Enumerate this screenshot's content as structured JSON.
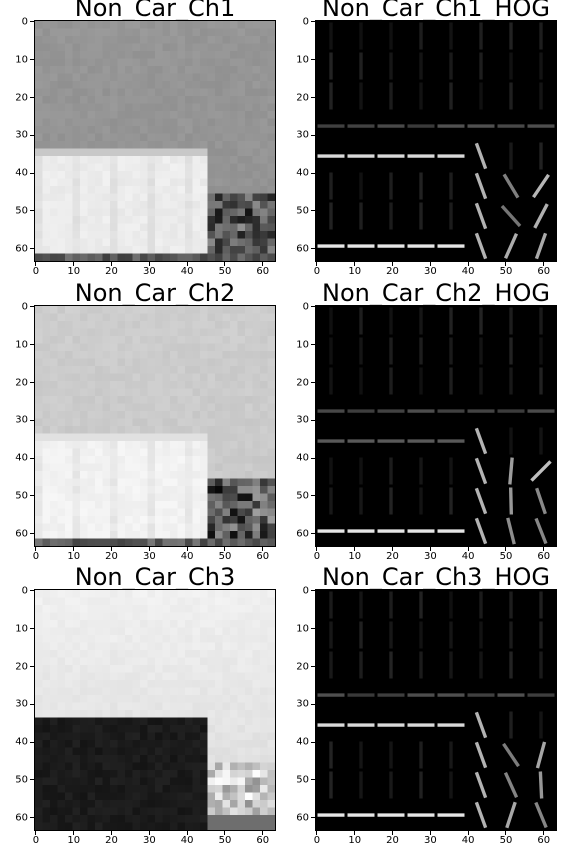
{
  "figure": {
    "panels": [
      {
        "title": "Non_Car_Ch1",
        "kind": "channel",
        "variant": 1
      },
      {
        "title": "Non_Car_Ch1_HOG",
        "kind": "hog",
        "variant": 1
      },
      {
        "title": "Non_Car_Ch2",
        "kind": "channel",
        "variant": 2
      },
      {
        "title": "Non_Car_Ch2_HOG",
        "kind": "hog",
        "variant": 2
      },
      {
        "title": "Non_Car_Ch3",
        "kind": "channel",
        "variant": 3
      },
      {
        "title": "Non_Car_Ch3_HOG",
        "kind": "hog",
        "variant": 3
      }
    ]
  },
  "chart_data": [
    {
      "type": "heatmap",
      "title": "Non_Car_Ch1",
      "xlim": [
        0,
        63
      ],
      "ylim": [
        63,
        0
      ],
      "xticks": [
        0,
        10,
        20,
        30,
        40,
        50,
        60
      ],
      "yticks": [
        0,
        10,
        20,
        30,
        40,
        50,
        60
      ],
      "colormap": "gray"
    },
    {
      "type": "heatmap",
      "title": "Non_Car_Ch1_HOG",
      "xlim": [
        0,
        63
      ],
      "ylim": [
        63,
        0
      ],
      "xticks": [
        0,
        10,
        20,
        30,
        40,
        50,
        60
      ],
      "yticks": [
        0,
        10,
        20,
        30,
        40,
        50,
        60
      ],
      "colormap": "gray"
    },
    {
      "type": "heatmap",
      "title": "Non_Car_Ch2",
      "xlim": [
        0,
        63
      ],
      "ylim": [
        63,
        0
      ],
      "xticks": [
        0,
        10,
        20,
        30,
        40,
        50,
        60
      ],
      "yticks": [
        0,
        10,
        20,
        30,
        40,
        50,
        60
      ],
      "colormap": "gray"
    },
    {
      "type": "heatmap",
      "title": "Non_Car_Ch2_HOG",
      "xlim": [
        0,
        63
      ],
      "ylim": [
        63,
        0
      ],
      "xticks": [
        0,
        10,
        20,
        30,
        40,
        50,
        60
      ],
      "yticks": [
        0,
        10,
        20,
        30,
        40,
        50,
        60
      ],
      "colormap": "gray"
    },
    {
      "type": "heatmap",
      "title": "Non_Car_Ch3",
      "xlim": [
        0,
        63
      ],
      "ylim": [
        63,
        0
      ],
      "xticks": [
        0,
        10,
        20,
        30,
        40,
        50,
        60
      ],
      "yticks": [
        0,
        10,
        20,
        30,
        40,
        50,
        60
      ],
      "colormap": "gray"
    },
    {
      "type": "heatmap",
      "title": "Non_Car_Ch3_HOG",
      "xlim": [
        0,
        63
      ],
      "ylim": [
        63,
        0
      ],
      "xticks": [
        0,
        10,
        20,
        30,
        40,
        50,
        60
      ],
      "yticks": [
        0,
        10,
        20,
        30,
        40,
        50,
        60
      ],
      "colormap": "gray"
    }
  ]
}
